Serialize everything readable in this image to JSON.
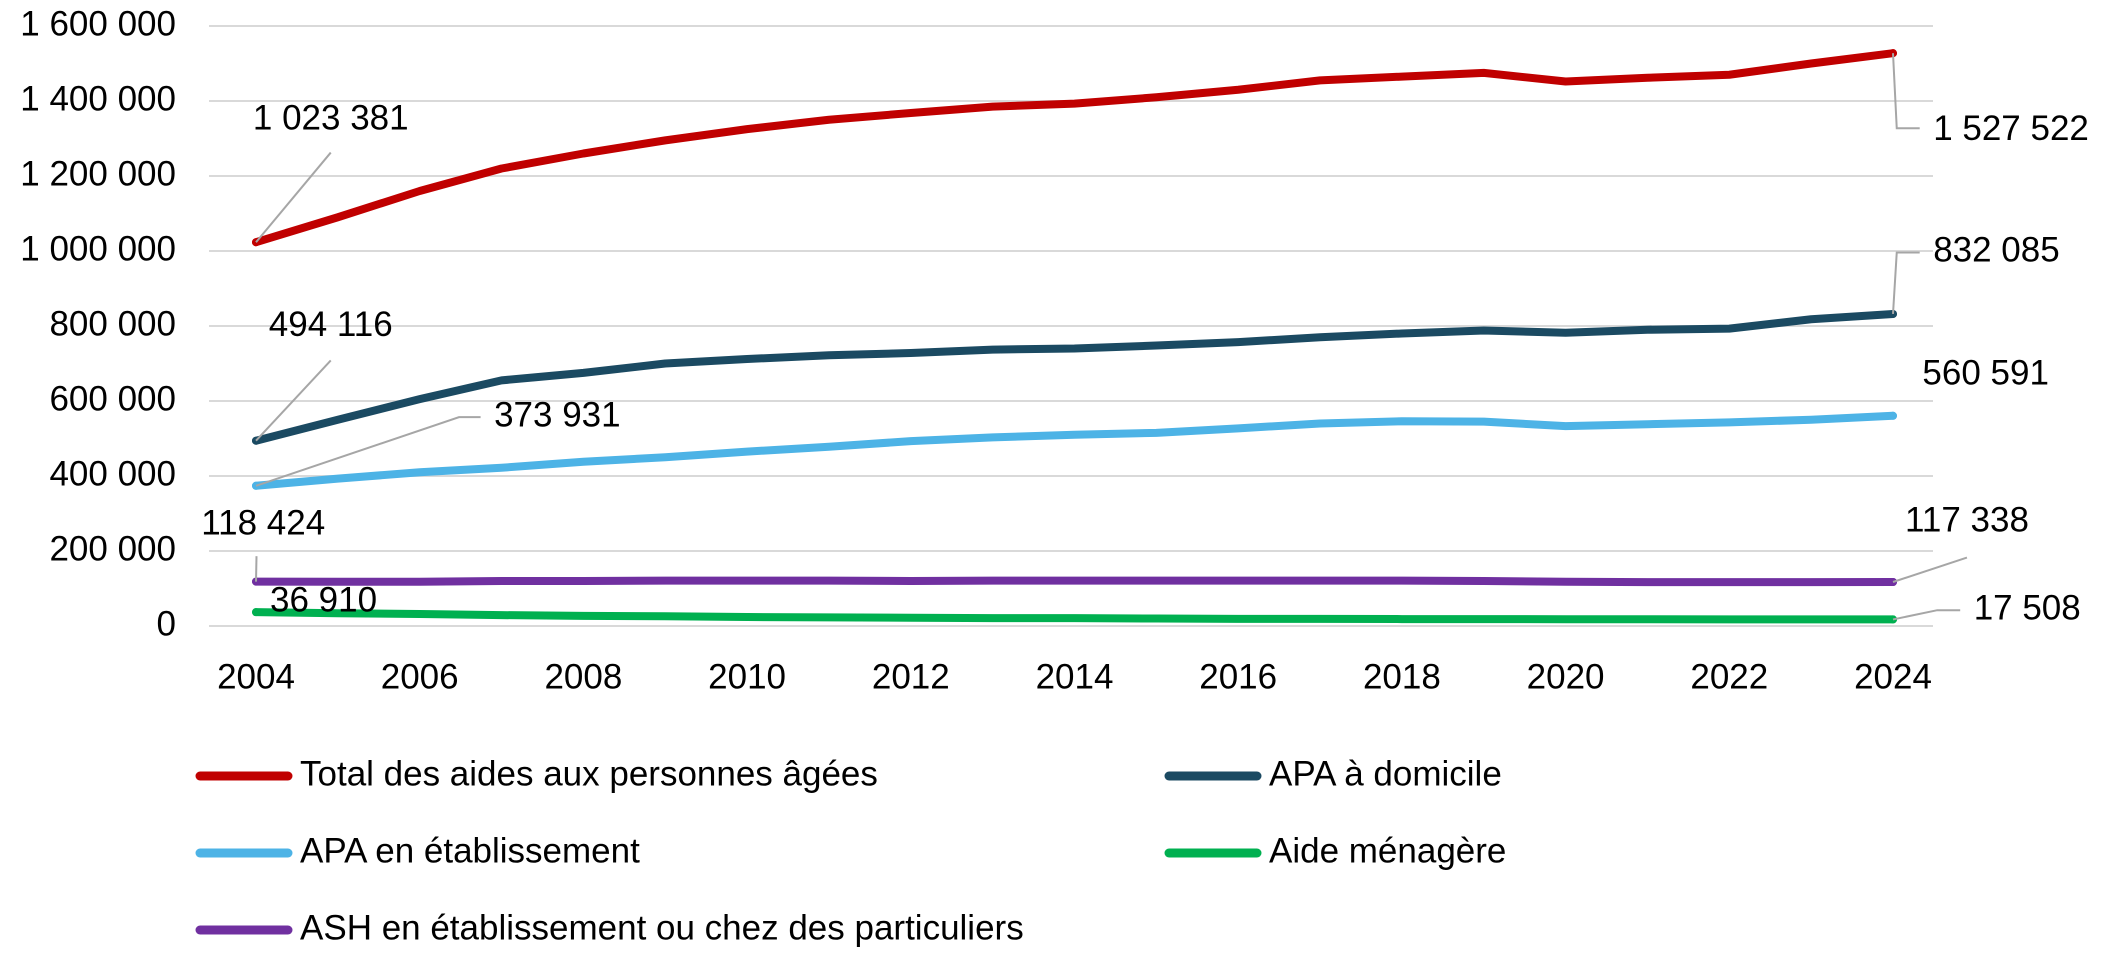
{
  "chart_data": {
    "type": "line",
    "x": [
      2004,
      2005,
      2006,
      2007,
      2008,
      2009,
      2010,
      2011,
      2012,
      2013,
      2014,
      2015,
      2016,
      2017,
      2018,
      2019,
      2020,
      2021,
      2022,
      2023,
      2024
    ],
    "xlim": [
      2004,
      2024
    ],
    "xticks": [
      2004,
      2006,
      2008,
      2010,
      2012,
      2014,
      2016,
      2018,
      2020,
      2022,
      2024
    ],
    "ylim": [
      0,
      1600000
    ],
    "yticks": [
      0,
      {
        "value": 200000,
        "label": "200 000"
      },
      {
        "value": 400000,
        "label": "400 000"
      },
      {
        "value": 600000,
        "label": "600 000"
      },
      {
        "value": 800000,
        "label": "800 000"
      },
      {
        "value": 1000000,
        "label": "1 000 000"
      },
      {
        "value": 1200000,
        "label": "1 200 000"
      },
      {
        "value": 1400000,
        "label": "1 400 000"
      },
      {
        "value": 1600000,
        "label": "1 600 000"
      }
    ],
    "grid": true,
    "legend": "bottom",
    "series": [
      {
        "name": "Total des aides aux personnes âgées",
        "color": "#c00000",
        "values": [
          1023381,
          1090000,
          1160000,
          1220000,
          1260000,
          1295000,
          1325000,
          1350000,
          1368000,
          1385000,
          1393000,
          1410000,
          1430000,
          1455000,
          1465000,
          1475000,
          1452000,
          1462000,
          1470000,
          1500000,
          1527522
        ],
        "value_labels": [
          "1 023 381",
          null,
          null,
          null,
          null,
          null,
          null,
          null,
          null,
          null,
          null,
          null,
          null,
          null,
          null,
          null,
          null,
          null,
          null,
          null,
          "1 527 522"
        ]
      },
      {
        "name": "APA à domicile",
        "color": "#1b4a62",
        "values": [
          494116,
          550000,
          605000,
          655000,
          675000,
          700000,
          712000,
          722000,
          728000,
          737000,
          740000,
          748000,
          757000,
          770000,
          780000,
          788000,
          782000,
          790000,
          793000,
          818000,
          832085
        ],
        "value_labels": [
          "494 116",
          null,
          null,
          null,
          null,
          null,
          null,
          null,
          null,
          null,
          null,
          null,
          null,
          null,
          null,
          null,
          null,
          null,
          null,
          null,
          "832 085"
        ]
      },
      {
        "name": "APA en établissement",
        "color": "#4db3e6",
        "values": [
          373931,
          393000,
          410000,
          422000,
          438000,
          450000,
          465000,
          478000,
          493000,
          503000,
          510000,
          515000,
          527000,
          540000,
          546000,
          545000,
          533000,
          538000,
          543000,
          550000,
          560591
        ],
        "value_labels": [
          "373 931",
          null,
          null,
          null,
          null,
          null,
          null,
          null,
          null,
          null,
          null,
          null,
          null,
          null,
          null,
          null,
          null,
          null,
          null,
          null,
          "560 591"
        ]
      },
      {
        "name": "Aide ménagère",
        "color": "#00b050",
        "values": [
          36910,
          34000,
          32000,
          29000,
          27000,
          26000,
          24000,
          23000,
          22000,
          21000,
          21000,
          20000,
          19000,
          19000,
          18500,
          18500,
          18000,
          18000,
          17800,
          17600,
          17508
        ],
        "value_labels": [
          "36 910",
          null,
          null,
          null,
          null,
          null,
          null,
          null,
          null,
          null,
          null,
          null,
          null,
          null,
          null,
          null,
          null,
          null,
          null,
          null,
          "17 508"
        ]
      },
      {
        "name": "ASH en établissement ou chez des particuliers",
        "color": "#7030a0",
        "values": [
          118424,
          118000,
          118000,
          120000,
          120000,
          121000,
          121000,
          121000,
          120000,
          121000,
          121000,
          121000,
          121000,
          121000,
          121000,
          120000,
          118000,
          117000,
          117000,
          117000,
          117338
        ],
        "value_labels": [
          "118 424",
          null,
          null,
          null,
          null,
          null,
          null,
          null,
          null,
          null,
          null,
          null,
          null,
          null,
          null,
          null,
          null,
          null,
          null,
          null,
          "117 338"
        ]
      }
    ]
  }
}
